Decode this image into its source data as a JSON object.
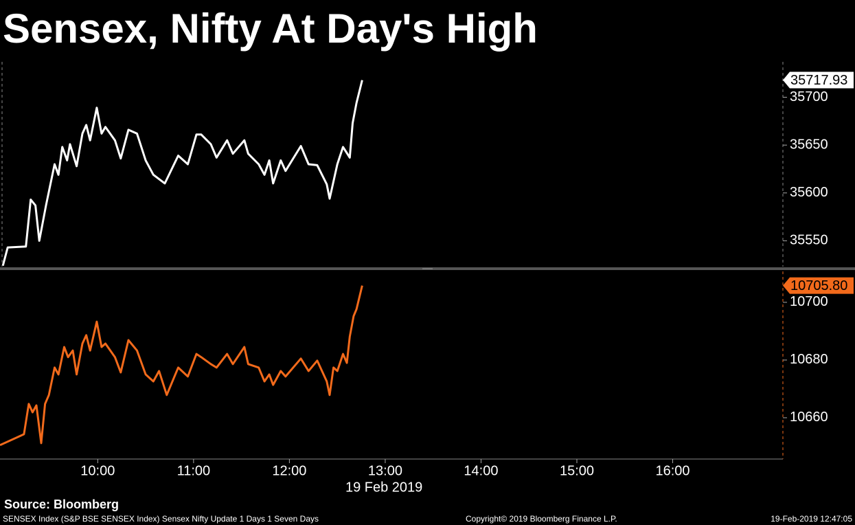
{
  "title": "Sensex, Nifty At Day's High",
  "source": "Source: Bloomberg",
  "footer_left": "SENSEX Index (S&P BSE SENSEX Index) Sensex Nifty Update 1 Days 1 Seven Days",
  "footer_center": "Copyright© 2019 Bloomberg Finance L.P.",
  "footer_right": "19-Feb-2019 12:47:05",
  "chart_data": [
    {
      "type": "line",
      "xlim": [
        8.98,
        17.15
      ],
      "ylim": [
        35523,
        35737
      ],
      "yticks": [
        35550,
        35600,
        35650,
        35700
      ],
      "series": [
        {
          "color": "#ffffff",
          "x": [
            9.01,
            9.06,
            9.25,
            9.3,
            9.35,
            9.39,
            9.46,
            9.55,
            9.59,
            9.63,
            9.68,
            9.71,
            9.78,
            9.84,
            9.88,
            9.92,
            9.99,
            10.04,
            10.08,
            10.18,
            10.24,
            10.32,
            10.41,
            10.5,
            10.58,
            10.7,
            10.84,
            10.94,
            11.03,
            11.08,
            11.18,
            11.24,
            11.35,
            11.41,
            11.53,
            11.57,
            11.68,
            11.74,
            11.79,
            11.83,
            11.91,
            11.96,
            12.12,
            12.2,
            12.29,
            12.39,
            12.42,
            12.5,
            12.56,
            12.63,
            12.66,
            12.7,
            12.76
          ],
          "values": [
            35524,
            35543,
            35544,
            35593,
            35587,
            35550,
            35587,
            35630,
            35619,
            35648,
            35634,
            35651,
            35628,
            35662,
            35671,
            35655,
            35689,
            35662,
            35669,
            35655,
            35636,
            35666,
            35662,
            35634,
            35619,
            35610,
            35639,
            35630,
            35661,
            35661,
            35651,
            35637,
            35655,
            35641,
            35655,
            35641,
            35630,
            35619,
            35634,
            35610,
            35634,
            35623,
            35649,
            35630,
            35629,
            35609,
            35594,
            35630,
            35648,
            35637,
            35673,
            35694,
            35717.93
          ],
          "value_labels": [
            null,
            null,
            null,
            null,
            null,
            null,
            null,
            null,
            null,
            null,
            null,
            null,
            null,
            null,
            null,
            null,
            null,
            null,
            null,
            null,
            null,
            null,
            null,
            null,
            null,
            null,
            null,
            null,
            null,
            null,
            null,
            null,
            null,
            null,
            null,
            null,
            null,
            null,
            null,
            null,
            null,
            null,
            null,
            null,
            null,
            null,
            null,
            null,
            null,
            null,
            null,
            null,
            "35717.93"
          ]
        }
      ]
    },
    {
      "type": "line",
      "xlim": [
        8.98,
        17.15
      ],
      "ylim": [
        10645.7,
        10710.7
      ],
      "yticks": [
        10660,
        10680,
        10700
      ],
      "xticks": [
        {
          "value": 10,
          "label": "10:00"
        },
        {
          "value": 11,
          "label": "11:00"
        },
        {
          "value": 12,
          "label": "12:00"
        },
        {
          "value": 13,
          "label": "13:00"
        },
        {
          "value": 14,
          "label": "14:00"
        },
        {
          "value": 15,
          "label": "15:00"
        },
        {
          "value": 16,
          "label": "16:00"
        }
      ],
      "xlabel": "19 Feb 2019",
      "series": [
        {
          "color": "#f26a1b",
          "x": [
            8.98,
            9.23,
            9.28,
            9.32,
            9.36,
            9.41,
            9.45,
            9.49,
            9.55,
            9.59,
            9.65,
            9.69,
            9.74,
            9.78,
            9.84,
            9.88,
            9.92,
            9.99,
            10.04,
            10.08,
            10.18,
            10.24,
            10.32,
            10.41,
            10.5,
            10.58,
            10.64,
            10.72,
            10.84,
            10.94,
            11.03,
            11.08,
            11.18,
            11.24,
            11.35,
            11.41,
            11.53,
            11.57,
            11.68,
            11.74,
            11.79,
            11.83,
            11.91,
            11.96,
            12.12,
            12.2,
            12.29,
            12.39,
            12.42,
            12.46,
            12.5,
            12.56,
            12.6,
            12.63,
            12.67,
            12.7,
            12.76
          ],
          "values": [
            10650.5,
            10654.3,
            10664.8,
            10661.9,
            10664.3,
            10651.2,
            10664.8,
            10667.9,
            10677.4,
            10675,
            10684.5,
            10681,
            10683.3,
            10675,
            10685.7,
            10688.6,
            10683.3,
            10693.3,
            10684.5,
            10685.7,
            10681,
            10675.7,
            10686.9,
            10683.3,
            10675,
            10672.6,
            10676.2,
            10667.9,
            10677.4,
            10674.3,
            10682.1,
            10681,
            10678.6,
            10677.4,
            10682.1,
            10678.6,
            10684.5,
            10678.6,
            10677.4,
            10672.6,
            10675,
            10671.4,
            10676.2,
            10674.3,
            10680.5,
            10676.2,
            10679.8,
            10672.6,
            10667.9,
            10677.4,
            10676.2,
            10682.1,
            10679,
            10688.1,
            10695.2,
            10697.6,
            10705.8
          ],
          "value_labels": [
            null,
            null,
            null,
            null,
            null,
            null,
            null,
            null,
            null,
            null,
            null,
            null,
            null,
            null,
            null,
            null,
            null,
            null,
            null,
            null,
            null,
            null,
            null,
            null,
            null,
            null,
            null,
            null,
            null,
            null,
            null,
            null,
            null,
            null,
            null,
            null,
            null,
            null,
            null,
            null,
            null,
            null,
            null,
            null,
            null,
            null,
            null,
            null,
            null,
            null,
            null,
            null,
            null,
            null,
            null,
            null,
            "10705.80"
          ]
        }
      ]
    }
  ]
}
